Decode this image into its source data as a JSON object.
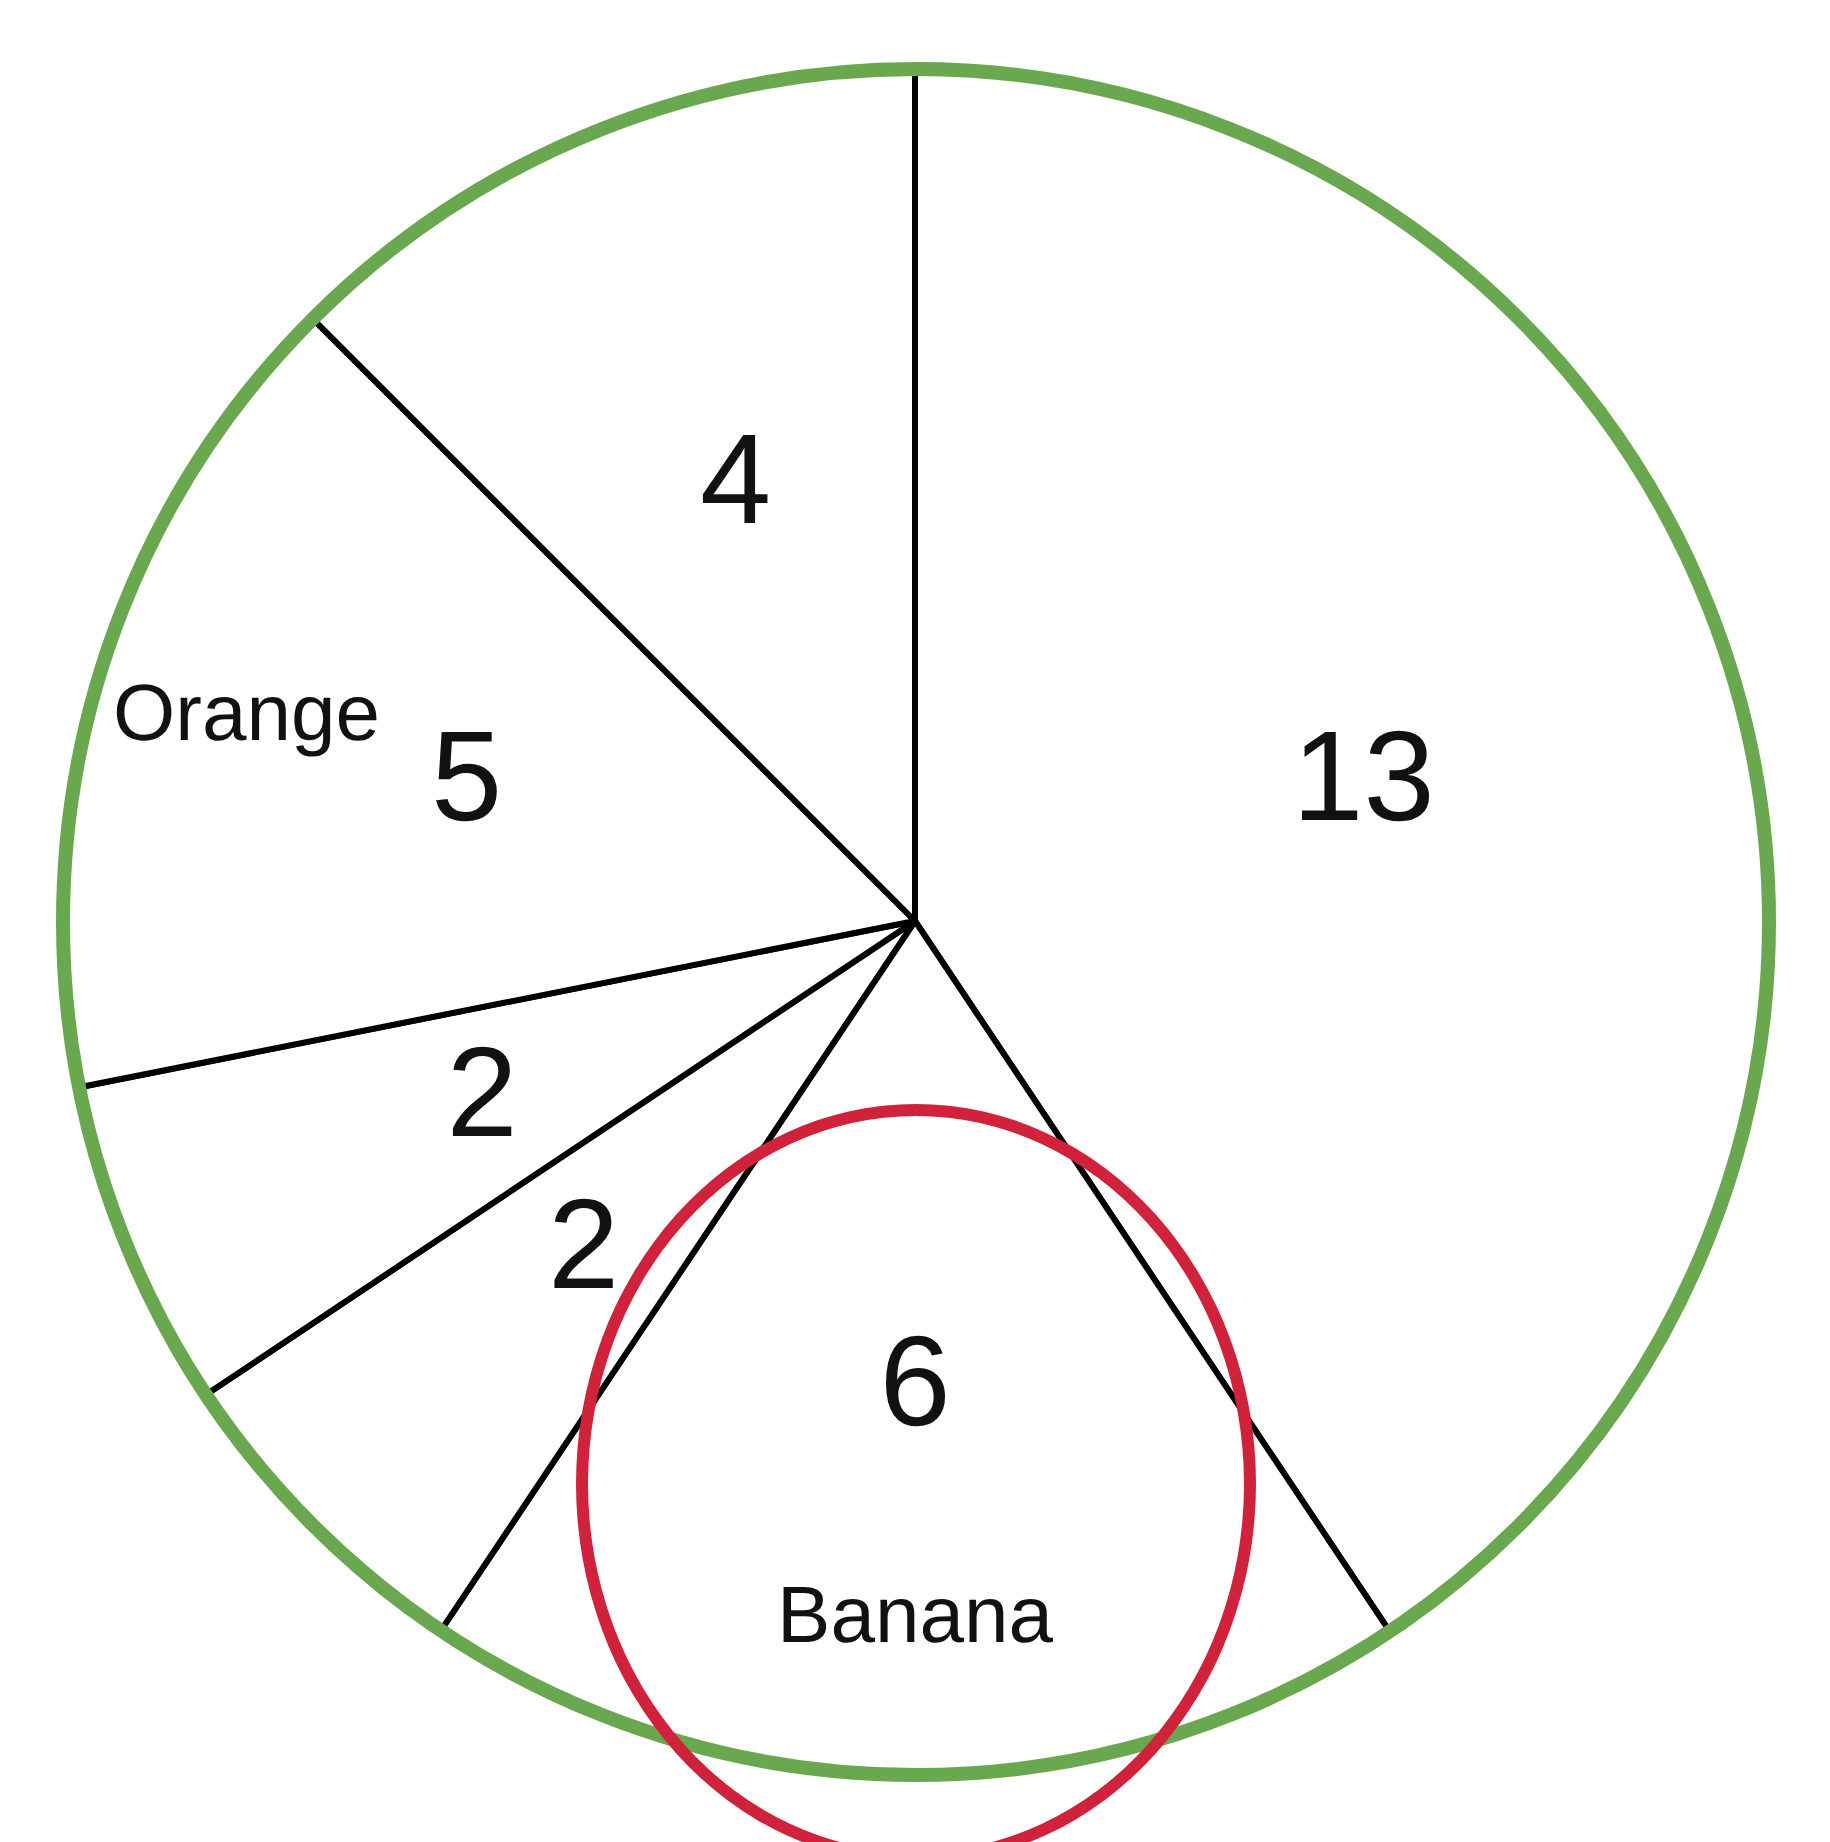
{
  "chart_data": {
    "type": "pie",
    "categories": [
      null,
      "Banana",
      null,
      null,
      "Orange",
      null
    ],
    "values": [
      13,
      6,
      2,
      2,
      5,
      4
    ],
    "colors": [
      "#ffffff",
      "#ffffff",
      "#ffffff",
      "#ffffff",
      "#ffffff",
      "#ffffff"
    ],
    "data_labels": true,
    "legend": false
  }
}
